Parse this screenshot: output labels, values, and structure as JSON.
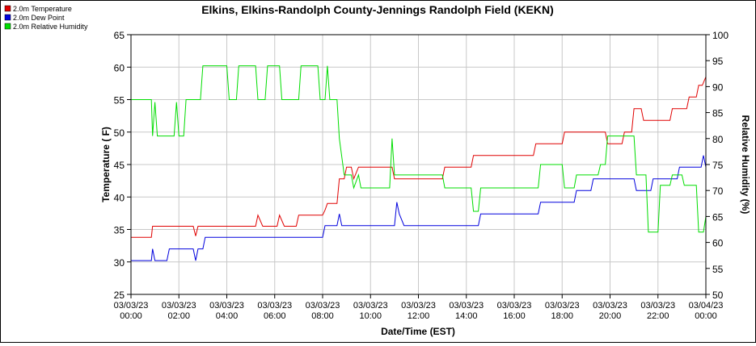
{
  "chart_data": {
    "type": "line",
    "title": "Elkins, Elkins-Randolph County-Jennings Randolph Field (KEKN)",
    "xlabel": "Date/Time (EST)",
    "ylabel_left": "Temperature ( F)",
    "ylabel_right": "Relative Humidity (%)",
    "ylim_left": [
      25,
      65
    ],
    "ylim_right": [
      50,
      100
    ],
    "y_ticks_left": [
      "25",
      "30",
      "35",
      "40",
      "45",
      "50",
      "55",
      "60",
      "65"
    ],
    "y_ticks_right": [
      "50",
      "55",
      "60",
      "65",
      "70",
      "75",
      "80",
      "85",
      "90",
      "95",
      "100"
    ],
    "xlim_hours": [
      0,
      24
    ],
    "x_ticks": [
      {
        "date": "03/03/23",
        "time": "00:00"
      },
      {
        "date": "03/03/23",
        "time": "02:00"
      },
      {
        "date": "03/03/23",
        "time": "04:00"
      },
      {
        "date": "03/03/23",
        "time": "06:00"
      },
      {
        "date": "03/03/23",
        "time": "08:00"
      },
      {
        "date": "03/03/23",
        "time": "10:00"
      },
      {
        "date": "03/03/23",
        "time": "12:00"
      },
      {
        "date": "03/03/23",
        "time": "14:00"
      },
      {
        "date": "03/03/23",
        "time": "16:00"
      },
      {
        "date": "03/03/23",
        "time": "18:00"
      },
      {
        "date": "03/03/23",
        "time": "20:00"
      },
      {
        "date": "03/03/23",
        "time": "22:00"
      },
      {
        "date": "03/04/23",
        "time": "00:00"
      }
    ],
    "grid": true,
    "legend_position": "top-left",
    "series": [
      {
        "name": "2.0m Temperature",
        "color": "#e00000",
        "axis": "left",
        "points": [
          [
            0,
            33.8
          ],
          [
            0.85,
            33.8
          ],
          [
            0.9,
            35.5
          ],
          [
            2.6,
            35.5
          ],
          [
            2.7,
            34.0
          ],
          [
            2.8,
            35.5
          ],
          [
            5.2,
            35.5
          ],
          [
            5.3,
            37.2
          ],
          [
            5.5,
            35.5
          ],
          [
            6.1,
            35.5
          ],
          [
            6.2,
            37.2
          ],
          [
            6.4,
            35.5
          ],
          [
            6.9,
            35.5
          ],
          [
            7.0,
            37.2
          ],
          [
            8.0,
            37.2
          ],
          [
            8.1,
            38.0
          ],
          [
            8.2,
            39.0
          ],
          [
            8.6,
            39.0
          ],
          [
            8.7,
            42.8
          ],
          [
            8.9,
            42.8
          ],
          [
            9.0,
            44.6
          ],
          [
            9.2,
            44.6
          ],
          [
            9.3,
            42.8
          ],
          [
            9.5,
            44.6
          ],
          [
            10.9,
            44.6
          ],
          [
            11.0,
            42.8
          ],
          [
            13.0,
            42.8
          ],
          [
            13.1,
            44.6
          ],
          [
            14.2,
            44.6
          ],
          [
            14.3,
            46.4
          ],
          [
            16.8,
            46.4
          ],
          [
            16.9,
            48.2
          ],
          [
            18.0,
            48.2
          ],
          [
            18.1,
            50.0
          ],
          [
            19.8,
            50.0
          ],
          [
            19.9,
            48.2
          ],
          [
            20.5,
            48.2
          ],
          [
            20.6,
            50.0
          ],
          [
            20.9,
            50.0
          ],
          [
            21.0,
            53.6
          ],
          [
            21.3,
            53.6
          ],
          [
            21.4,
            51.8
          ],
          [
            22.5,
            51.8
          ],
          [
            22.6,
            53.6
          ],
          [
            23.2,
            53.6
          ],
          [
            23.3,
            55.4
          ],
          [
            23.6,
            55.4
          ],
          [
            23.7,
            57.2
          ],
          [
            23.85,
            57.2
          ],
          [
            24.0,
            58.5
          ]
        ]
      },
      {
        "name": "2.0m Dew Point",
        "color": "#0000dd",
        "axis": "left",
        "points": [
          [
            0,
            30.2
          ],
          [
            0.85,
            30.2
          ],
          [
            0.9,
            32.0
          ],
          [
            1.0,
            30.2
          ],
          [
            1.5,
            30.2
          ],
          [
            1.6,
            32.0
          ],
          [
            2.6,
            32.0
          ],
          [
            2.7,
            30.2
          ],
          [
            2.8,
            32.0
          ],
          [
            3.0,
            32.0
          ],
          [
            3.1,
            33.8
          ],
          [
            5.8,
            33.8
          ],
          [
            7.0,
            33.8
          ],
          [
            8.0,
            33.8
          ],
          [
            8.1,
            35.6
          ],
          [
            8.6,
            35.6
          ],
          [
            8.7,
            37.4
          ],
          [
            8.8,
            35.6
          ],
          [
            11.0,
            35.6
          ],
          [
            11.1,
            39.2
          ],
          [
            11.2,
            37.4
          ],
          [
            11.4,
            35.6
          ],
          [
            12.0,
            35.6
          ],
          [
            13.0,
            35.6
          ],
          [
            14.5,
            35.6
          ],
          [
            14.6,
            37.4
          ],
          [
            17.0,
            37.4
          ],
          [
            17.1,
            39.2
          ],
          [
            18.5,
            39.2
          ],
          [
            18.6,
            41.0
          ],
          [
            19.2,
            41.0
          ],
          [
            19.3,
            42.8
          ],
          [
            21.0,
            42.8
          ],
          [
            21.1,
            41.0
          ],
          [
            21.7,
            41.0
          ],
          [
            21.8,
            42.8
          ],
          [
            22.8,
            42.8
          ],
          [
            22.9,
            44.6
          ],
          [
            23.8,
            44.6
          ],
          [
            23.9,
            46.4
          ],
          [
            24.0,
            44.6
          ]
        ]
      },
      {
        "name": "2.0m Relative Humidity",
        "color": "#00dd00",
        "axis": "right",
        "points": [
          [
            0,
            87.5
          ],
          [
            0.85,
            87.5
          ],
          [
            0.9,
            80.5
          ],
          [
            1.0,
            87.0
          ],
          [
            1.1,
            80.5
          ],
          [
            1.8,
            80.5
          ],
          [
            1.9,
            87.0
          ],
          [
            2.0,
            80.5
          ],
          [
            2.2,
            80.5
          ],
          [
            2.3,
            87.5
          ],
          [
            2.9,
            87.5
          ],
          [
            3.0,
            94.0
          ],
          [
            4.0,
            94.0
          ],
          [
            4.1,
            87.5
          ],
          [
            4.4,
            87.5
          ],
          [
            4.5,
            94.0
          ],
          [
            5.2,
            94.0
          ],
          [
            5.3,
            87.5
          ],
          [
            5.6,
            87.5
          ],
          [
            5.7,
            94.0
          ],
          [
            6.2,
            94.0
          ],
          [
            6.3,
            87.5
          ],
          [
            7.0,
            87.5
          ],
          [
            7.1,
            94.0
          ],
          [
            7.8,
            94.0
          ],
          [
            7.9,
            87.5
          ],
          [
            8.1,
            87.5
          ],
          [
            8.2,
            94.0
          ],
          [
            8.3,
            87.5
          ],
          [
            8.6,
            87.5
          ],
          [
            8.7,
            80.0
          ],
          [
            8.9,
            73.0
          ],
          [
            9.2,
            73.0
          ],
          [
            9.3,
            70.5
          ],
          [
            9.5,
            73.0
          ],
          [
            9.6,
            70.5
          ],
          [
            10.8,
            70.5
          ],
          [
            10.9,
            80.0
          ],
          [
            11.0,
            73.0
          ],
          [
            12.0,
            73.0
          ],
          [
            13.0,
            73.0
          ],
          [
            13.1,
            70.5
          ],
          [
            14.2,
            70.5
          ],
          [
            14.3,
            66.0
          ],
          [
            14.5,
            66.0
          ],
          [
            14.6,
            70.5
          ],
          [
            16.5,
            70.5
          ],
          [
            17.0,
            70.5
          ],
          [
            17.1,
            75.0
          ],
          [
            18.0,
            75.0
          ],
          [
            18.1,
            70.5
          ],
          [
            18.5,
            70.5
          ],
          [
            18.6,
            73.0
          ],
          [
            19.5,
            73.0
          ],
          [
            19.6,
            75.0
          ],
          [
            19.8,
            75.0
          ],
          [
            19.9,
            80.5
          ],
          [
            21.0,
            80.5
          ],
          [
            21.1,
            73.0
          ],
          [
            21.5,
            73.0
          ],
          [
            21.6,
            62.0
          ],
          [
            22.0,
            62.0
          ],
          [
            22.1,
            71.0
          ],
          [
            22.5,
            71.0
          ],
          [
            22.6,
            73.0
          ],
          [
            23.0,
            73.0
          ],
          [
            23.1,
            71.0
          ],
          [
            23.6,
            71.0
          ],
          [
            23.7,
            62.0
          ],
          [
            23.9,
            62.0
          ],
          [
            24.0,
            65.0
          ]
        ]
      }
    ]
  }
}
